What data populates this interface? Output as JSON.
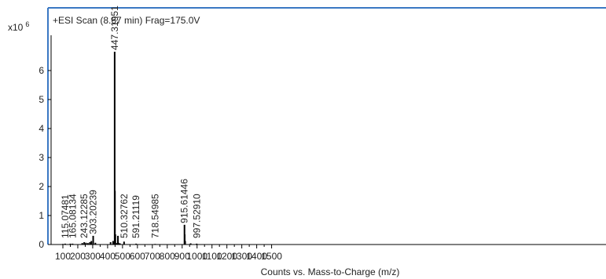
{
  "chart_data": {
    "type": "bar",
    "title": "+ESI Scan (8.67 min) Frag=175.0V",
    "xlabel": "Counts vs. Mass-to-Charge (m/z)",
    "ylabel": "",
    "y_multiplier": "x10",
    "y_exponent": "6",
    "xlim": [
      70,
      1570
    ],
    "ylim": [
      0,
      7.1
    ],
    "xticks": [
      "100",
      "200",
      "300",
      "400",
      "500",
      "600",
      "700",
      "800",
      "900",
      "1000",
      "1100",
      "1200",
      "1300",
      "1400",
      "1500"
    ],
    "yticks": [
      "0",
      "1",
      "2",
      "3",
      "4",
      "5",
      "6"
    ],
    "grid": false,
    "colors": {
      "frame": "#3a78c3",
      "bar": "#000000",
      "label": "#222222"
    },
    "peaks": [
      {
        "x": 115.07481,
        "y": 0.03,
        "label": "115.07481"
      },
      {
        "x": 165.08134,
        "y": 0.03,
        "label": "165.08134"
      },
      {
        "x": 243.12285,
        "y": 0.08,
        "label": "243.12285"
      },
      {
        "x": 303.20239,
        "y": 0.3,
        "label": "303.20239"
      },
      {
        "x": 447.31951,
        "y": 6.65,
        "label": "447.31951"
      },
      {
        "x": 510.32762,
        "y": 0.1,
        "label": "510.32762"
      },
      {
        "x": 591.21119,
        "y": 0.03,
        "label": "591.21119"
      },
      {
        "x": 718.54985,
        "y": 0.02,
        "label": "718.54985"
      },
      {
        "x": 915.61446,
        "y": 0.68,
        "label": "915.61446"
      },
      {
        "x": 997.5291,
        "y": 0.03,
        "label": "997.52910"
      }
    ],
    "minor_peaks": [
      {
        "x": 100,
        "y": 0.02
      },
      {
        "x": 150,
        "y": 0.03
      },
      {
        "x": 230,
        "y": 0.05
      },
      {
        "x": 255,
        "y": 0.06
      },
      {
        "x": 268,
        "y": 0.05
      },
      {
        "x": 281,
        "y": 0.08
      },
      {
        "x": 291,
        "y": 0.12
      },
      {
        "x": 318,
        "y": 0.06
      },
      {
        "x": 420,
        "y": 0.08
      },
      {
        "x": 437,
        "y": 0.12
      },
      {
        "x": 449,
        "y": 1.85
      },
      {
        "x": 452,
        "y": 0.35
      },
      {
        "x": 462,
        "y": 0.05
      },
      {
        "x": 469,
        "y": 0.3
      },
      {
        "x": 473,
        "y": 0.06
      },
      {
        "x": 483,
        "y": 0.04
      },
      {
        "x": 917,
        "y": 0.35
      },
      {
        "x": 920,
        "y": 0.12
      },
      {
        "x": 957,
        "y": 0.04
      }
    ]
  }
}
